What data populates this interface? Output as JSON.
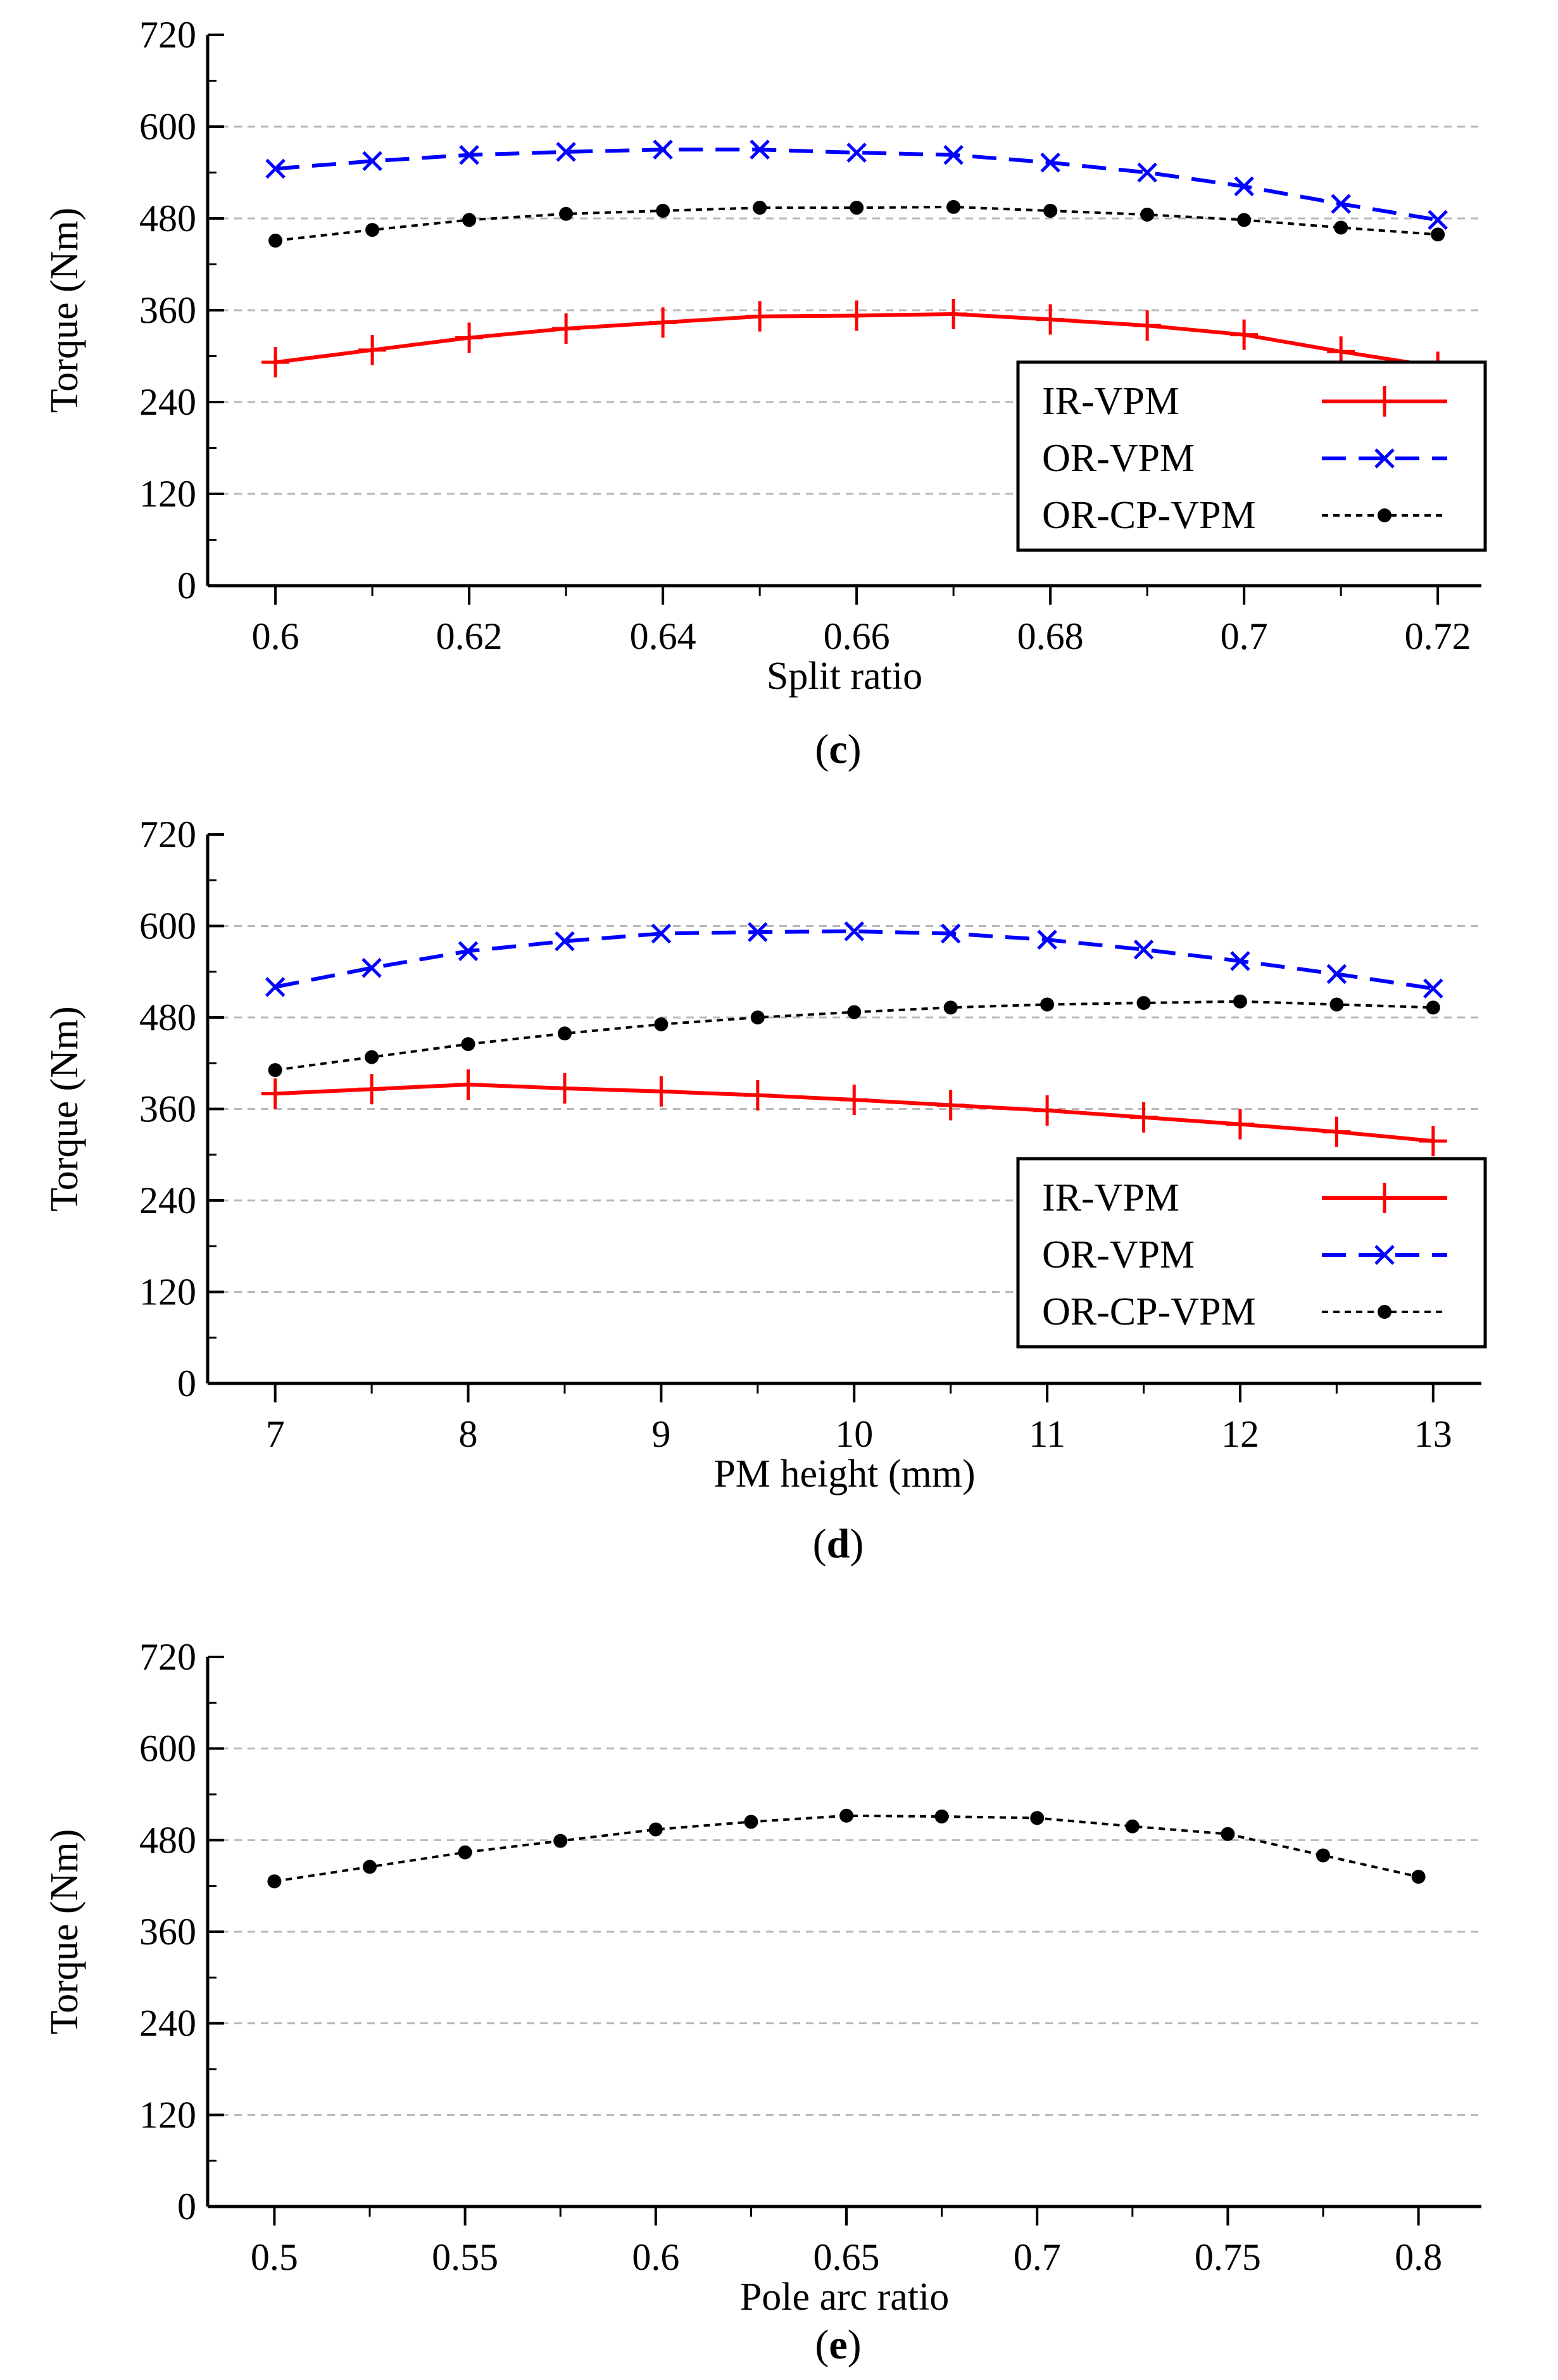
{
  "chart_data": [
    {
      "type": "line",
      "panel_label": "(c)",
      "panel_letter": "c",
      "xlabel": "Split ratio",
      "ylabel": "Torque (Nm)",
      "ylim": [
        0,
        720
      ],
      "xlim": [
        0.593,
        0.7245
      ],
      "x": [
        0.6,
        0.61,
        0.62,
        0.63,
        0.64,
        0.65,
        0.66,
        0.67,
        0.68,
        0.69,
        0.7,
        0.71,
        0.72
      ],
      "x_ticks": [
        0.6,
        0.62,
        0.64,
        0.66,
        0.68,
        0.7,
        0.72
      ],
      "x_tick_labels": [
        "0.6",
        "0.62",
        "0.64",
        "0.66",
        "0.68",
        "0.7",
        "0.72"
      ],
      "x_minor_step": 0.01,
      "y_ticks": [
        0,
        120,
        240,
        360,
        480,
        600,
        720
      ],
      "y_tick_labels": [
        "0",
        "120",
        "240",
        "360",
        "480",
        "600",
        "720"
      ],
      "grid": "horizontal dashed",
      "legend": "bottom-right",
      "series": [
        {
          "name": "IR-VPM",
          "color": "#ff0000",
          "dash": "solid",
          "marker": "plus",
          "values": [
            292,
            308,
            324,
            336,
            344,
            352,
            353,
            355,
            348,
            340,
            328,
            306,
            286
          ]
        },
        {
          "name": "OR-VPM",
          "color": "#0000ff",
          "dash": "dashed",
          "marker": "x",
          "values": [
            545,
            555,
            563,
            567,
            570,
            570,
            566,
            563,
            553,
            540,
            522,
            499,
            478
          ]
        },
        {
          "name": "OR-CP-VPM",
          "color": "#000000",
          "dash": "dotted",
          "marker": "dot",
          "values": [
            451,
            465,
            478,
            486,
            490,
            494,
            494,
            495,
            490,
            485,
            478,
            468,
            459
          ]
        }
      ]
    },
    {
      "type": "line",
      "panel_label": "(d)",
      "panel_letter": "d",
      "xlabel": "PM height (mm)",
      "ylabel": "Torque (Nm)",
      "ylim": [
        0,
        720
      ],
      "xlim": [
        6.65,
        13.25
      ],
      "x": [
        7,
        7.5,
        8,
        8.5,
        9,
        9.5,
        10,
        10.5,
        11,
        11.5,
        12,
        12.5,
        13
      ],
      "x_ticks": [
        7,
        8,
        9,
        10,
        11,
        12,
        13
      ],
      "x_tick_labels": [
        "7",
        "8",
        "9",
        "10",
        "11",
        "12",
        "13"
      ],
      "x_minor_step": 0.5,
      "y_ticks": [
        0,
        120,
        240,
        360,
        480,
        600,
        720
      ],
      "y_tick_labels": [
        "0",
        "120",
        "240",
        "360",
        "480",
        "600",
        "720"
      ],
      "grid": "horizontal dashed",
      "legend": "bottom-right",
      "series": [
        {
          "name": "IR-VPM",
          "color": "#ff0000",
          "dash": "solid",
          "marker": "plus",
          "values": [
            380,
            386,
            392,
            387,
            383,
            378,
            372,
            365,
            358,
            349,
            340,
            330,
            318
          ]
        },
        {
          "name": "OR-VPM",
          "color": "#0000ff",
          "dash": "dashed",
          "marker": "x",
          "values": [
            520,
            545,
            567,
            580,
            590,
            592,
            593,
            590,
            582,
            569,
            554,
            537,
            518
          ]
        },
        {
          "name": "OR-CP-VPM",
          "color": "#000000",
          "dash": "dotted",
          "marker": "dot",
          "values": [
            411,
            428,
            445,
            459,
            471,
            480,
            487,
            493,
            497,
            499,
            501,
            497,
            493
          ]
        }
      ]
    },
    {
      "type": "line",
      "panel_label": "(e)",
      "panel_letter": "e",
      "xlabel": "Pole arc ratio",
      "ylabel": "Torque (Nm)",
      "ylim": [
        0,
        720
      ],
      "xlim": [
        0.4825,
        0.8165
      ],
      "x": [
        0.5,
        0.525,
        0.55,
        0.575,
        0.6,
        0.625,
        0.65,
        0.675,
        0.7,
        0.725,
        0.75,
        0.775,
        0.8
      ],
      "x_ticks": [
        0.5,
        0.55,
        0.6,
        0.65,
        0.7,
        0.75,
        0.8
      ],
      "x_tick_labels": [
        "0.5",
        "0.55",
        "0.6",
        "0.65",
        "0.7",
        "0.75",
        "0.8"
      ],
      "x_minor_step": 0.025,
      "y_ticks": [
        0,
        120,
        240,
        360,
        480,
        600,
        720
      ],
      "y_tick_labels": [
        "0",
        "120",
        "240",
        "360",
        "480",
        "600",
        "720"
      ],
      "grid": "horizontal dashed",
      "legend": "none",
      "series": [
        {
          "name": "OR-CP-VPM",
          "color": "#000000",
          "dash": "dotted",
          "marker": "dot",
          "values": [
            426,
            445,
            464,
            479,
            494,
            504,
            512,
            511,
            509,
            498,
            488,
            460,
            432
          ]
        }
      ]
    }
  ]
}
